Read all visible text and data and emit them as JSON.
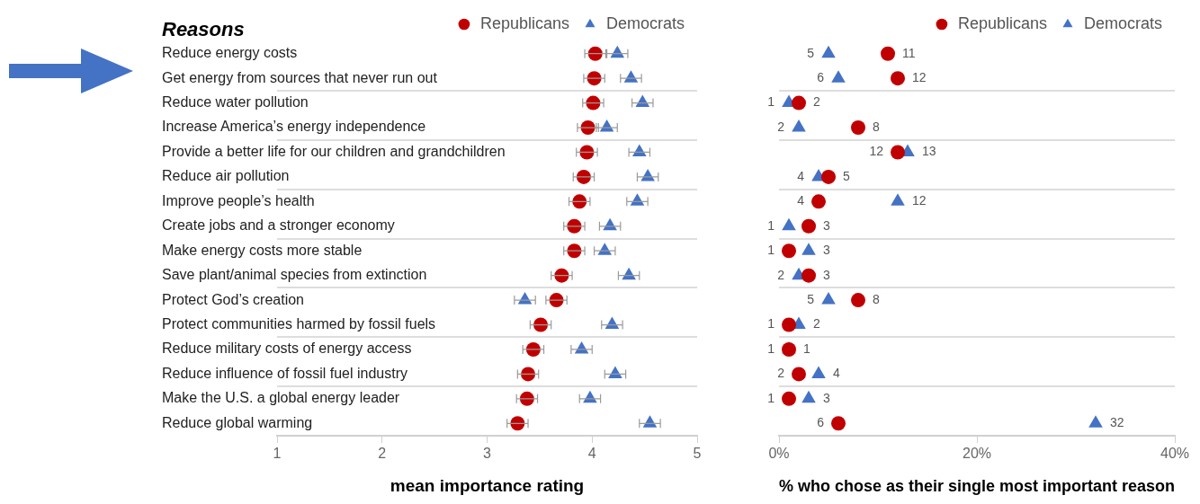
{
  "chart_data": [
    {
      "type": "scatter",
      "orientation": "horizontal",
      "title": "Reasons",
      "xlabel": "mean importance rating",
      "categories": [
        "Reduce energy costs",
        "Get energy from sources that never run out",
        "Reduce water pollution",
        "Increase America’s energy independence",
        "Provide a better life for our children and grandchildren",
        "Reduce air pollution",
        "Improve people’s health",
        "Create jobs and a stronger economy",
        "Make energy costs more stable",
        "Save plant/animal species from extinction",
        "Protect God’s creation",
        "Protect communities harmed by fossil fuels",
        "Reduce military costs of energy access",
        "Reduce influence of fossil fuel industry",
        "Make the U.S. a global energy leader",
        "Reduce global warming"
      ],
      "series": [
        {
          "name": "Republicans",
          "color": "#c00000",
          "marker": "circle",
          "values": [
            4.03,
            4.02,
            4.01,
            3.96,
            3.95,
            3.92,
            3.88,
            3.83,
            3.83,
            3.71,
            3.66,
            3.51,
            3.44,
            3.39,
            3.38,
            3.29
          ],
          "errors": [
            0.1,
            0.1,
            0.1,
            0.1,
            0.1,
            0.1,
            0.1,
            0.1,
            0.1,
            0.1,
            0.1,
            0.1,
            0.1,
            0.1,
            0.1,
            0.1
          ]
        },
        {
          "name": "Democrats",
          "color": "#4472c4",
          "marker": "triangle",
          "values": [
            4.24,
            4.37,
            4.48,
            4.14,
            4.45,
            4.53,
            4.43,
            4.17,
            4.12,
            4.35,
            3.36,
            4.19,
            3.9,
            4.22,
            3.98,
            4.55
          ],
          "errors": [
            0.1,
            0.1,
            0.1,
            0.1,
            0.1,
            0.1,
            0.1,
            0.1,
            0.1,
            0.1,
            0.1,
            0.1,
            0.1,
            0.1,
            0.1,
            0.1
          ]
        }
      ],
      "xlim": [
        1,
        5
      ],
      "xticks": [
        1,
        2,
        3,
        4,
        5
      ],
      "legend": "top right",
      "grid": "y"
    },
    {
      "type": "scatter",
      "orientation": "horizontal",
      "xlabel": "% who chose as their single most important reason",
      "categories": [
        null,
        null,
        null,
        null,
        null,
        null,
        null,
        null,
        null,
        null,
        null,
        null,
        null,
        null,
        null,
        null
      ],
      "series": [
        {
          "name": "Republicans",
          "color": "#c00000",
          "marker": "circle",
          "values": [
            11,
            12,
            2,
            8,
            12,
            5,
            4,
            3,
            1,
            3,
            8,
            1,
            1,
            2,
            1,
            6
          ]
        },
        {
          "name": "Democrats",
          "color": "#4472c4",
          "marker": "triangle",
          "values": [
            5,
            6,
            1,
            2,
            13,
            4,
            12,
            1,
            3,
            2,
            5,
            2,
            1,
            4,
            3,
            32
          ]
        }
      ],
      "xlim": [
        0,
        40
      ],
      "xticks": [
        {
          "value": 0,
          "label": "0%"
        },
        {
          "value": 20,
          "label": "20%"
        },
        {
          "value": 40,
          "label": "40%"
        }
      ],
      "data_labels": true,
      "legend": "top right",
      "grid": "y"
    }
  ]
}
